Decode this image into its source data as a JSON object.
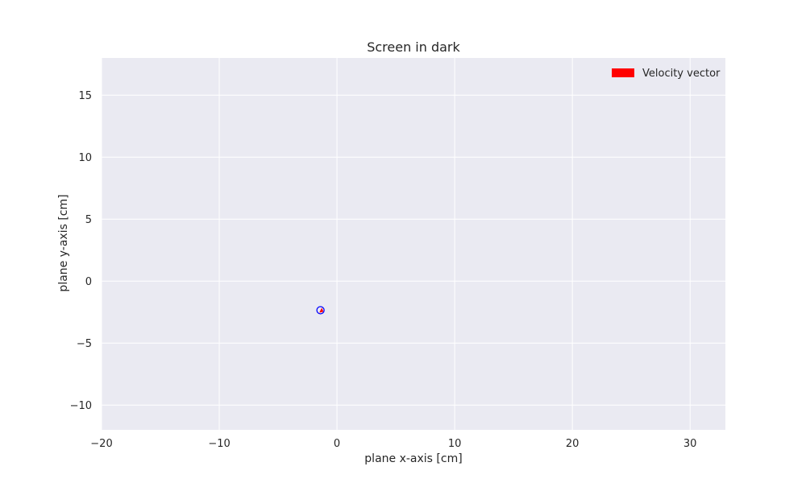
{
  "chart_data": {
    "type": "scatter",
    "title": "Screen in dark",
    "xlabel": "plane x-axis [cm]",
    "ylabel": "plane y-axis [cm]",
    "xlim": [
      -20,
      33
    ],
    "ylim": [
      -12,
      18
    ],
    "xticks": [
      -20,
      -10,
      0,
      10,
      20,
      30
    ],
    "yticks": [
      -10,
      -5,
      0,
      5,
      10,
      15
    ],
    "xtick_labels": [
      "−20",
      "−10",
      "0",
      "10",
      "20",
      "30"
    ],
    "ytick_labels": [
      "−10",
      "−5",
      "0",
      "5",
      "10",
      "15"
    ],
    "grid": true,
    "legend": {
      "location": "upper right",
      "entries": [
        {
          "label": "Velocity vector",
          "color": "#ff0000",
          "marker": "arrow"
        }
      ]
    },
    "points": [
      {
        "x": -1.4,
        "y": -2.35,
        "marker": "circle",
        "color": "#0000ff"
      }
    ],
    "vectors": [
      {
        "x": -1.4,
        "y": -2.35,
        "dx": 0.25,
        "dy": -0.12,
        "color": "#ff0000",
        "series": "Velocity vector"
      }
    ],
    "colors": {
      "plot_background": "#eaeaf2",
      "grid": "#ffffff",
      "text": "#262626"
    }
  }
}
